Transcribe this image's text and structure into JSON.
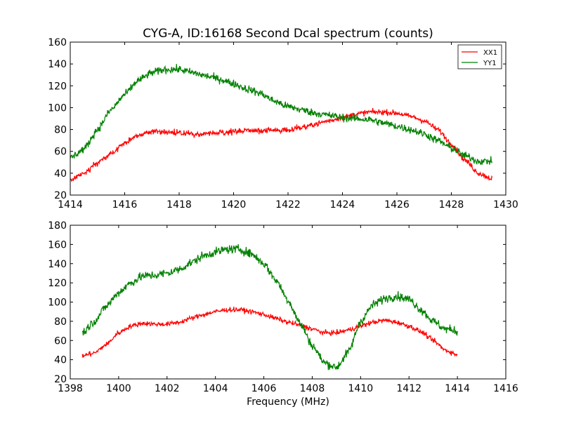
{
  "figure": {
    "title": "CYG-A, ID:16168 Second Dcal spectrum (counts)",
    "xlabel": "Frequency (MHz)"
  },
  "chart_data": [
    {
      "type": "line",
      "xlim": [
        1414,
        1430
      ],
      "ylim": [
        20,
        160
      ],
      "xticks": [
        1414,
        1416,
        1418,
        1420,
        1422,
        1424,
        1426,
        1428,
        1430
      ],
      "yticks": [
        20,
        40,
        60,
        80,
        100,
        120,
        140,
        160
      ],
      "legend": {
        "placement": "top-right"
      },
      "grid": false,
      "series": [
        {
          "name": "XX1",
          "color": "#ff0000",
          "x": [
            1414.0,
            1414.5,
            1415.0,
            1415.5,
            1416.0,
            1416.5,
            1417.0,
            1417.5,
            1418.0,
            1418.5,
            1419.0,
            1419.5,
            1420.0,
            1420.5,
            1421.0,
            1421.5,
            1422.0,
            1422.5,
            1423.0,
            1423.5,
            1424.0,
            1424.5,
            1425.0,
            1425.5,
            1426.0,
            1426.5,
            1427.0,
            1427.5,
            1428.0,
            1428.5,
            1429.0,
            1429.5
          ],
          "y": [
            34,
            40,
            49,
            58,
            68,
            75,
            78,
            78,
            77,
            76,
            76,
            77,
            78,
            79,
            79,
            79,
            80,
            82,
            85,
            88,
            91,
            94,
            96,
            96,
            95,
            92,
            88,
            80,
            67,
            52,
            40,
            35
          ],
          "noise": 2.5
        },
        {
          "name": "YY1",
          "color": "#008000",
          "x": [
            1414.0,
            1414.5,
            1415.0,
            1415.5,
            1416.0,
            1416.5,
            1417.0,
            1417.5,
            1418.0,
            1418.5,
            1419.0,
            1419.5,
            1420.0,
            1420.5,
            1421.0,
            1421.5,
            1422.0,
            1422.5,
            1423.0,
            1423.5,
            1424.0,
            1424.5,
            1425.0,
            1425.5,
            1426.0,
            1426.5,
            1427.0,
            1427.5,
            1428.0,
            1428.5,
            1429.0,
            1429.5
          ],
          "y": [
            54,
            62,
            80,
            98,
            112,
            125,
            132,
            135,
            135,
            132,
            129,
            126,
            122,
            117,
            113,
            106,
            101,
            98,
            95,
            93,
            91,
            90,
            89,
            86,
            83,
            80,
            76,
            70,
            63,
            56,
            51,
            51
          ],
          "noise": 3.5
        }
      ]
    },
    {
      "type": "line",
      "xlim": [
        1398,
        1416
      ],
      "ylim": [
        20,
        180
      ],
      "xticks": [
        1398,
        1400,
        1402,
        1404,
        1406,
        1408,
        1410,
        1412,
        1414,
        1416
      ],
      "yticks": [
        20,
        40,
        60,
        80,
        100,
        120,
        140,
        160,
        180
      ],
      "grid": false,
      "series": [
        {
          "name": "XX1",
          "color": "#ff0000",
          "x": [
            1398.5,
            1399.0,
            1399.5,
            1400.0,
            1400.5,
            1401.0,
            1401.5,
            1402.0,
            1402.5,
            1403.0,
            1403.5,
            1404.0,
            1404.5,
            1405.0,
            1405.5,
            1406.0,
            1406.5,
            1407.0,
            1407.5,
            1408.0,
            1408.5,
            1409.0,
            1409.5,
            1410.0,
            1410.5,
            1411.0,
            1411.5,
            1412.0,
            1412.5,
            1413.0,
            1413.5,
            1414.0
          ],
          "y": [
            44,
            47,
            56,
            68,
            75,
            78,
            77,
            77,
            79,
            83,
            87,
            90,
            92,
            92,
            90,
            87,
            83,
            79,
            76,
            72,
            68,
            68,
            71,
            75,
            79,
            81,
            79,
            75,
            69,
            60,
            50,
            45
          ],
          "noise": 2.5
        },
        {
          "name": "YY1",
          "color": "#008000",
          "x": [
            1398.5,
            1399.0,
            1399.5,
            1400.0,
            1400.5,
            1401.0,
            1401.5,
            1402.0,
            1402.5,
            1403.0,
            1403.5,
            1404.0,
            1404.5,
            1405.0,
            1405.5,
            1406.0,
            1406.5,
            1407.0,
            1407.5,
            1408.0,
            1408.5,
            1409.0,
            1409.5,
            1410.0,
            1410.5,
            1411.0,
            1411.5,
            1412.0,
            1412.5,
            1413.0,
            1413.5,
            1414.0
          ],
          "y": [
            68,
            80,
            96,
            110,
            120,
            127,
            128,
            130,
            134,
            141,
            148,
            152,
            155,
            155,
            150,
            140,
            123,
            102,
            78,
            55,
            37,
            32,
            48,
            80,
            97,
            104,
            106,
            103,
            92,
            80,
            72,
            70
          ],
          "noise": 4.5
        }
      ]
    }
  ]
}
